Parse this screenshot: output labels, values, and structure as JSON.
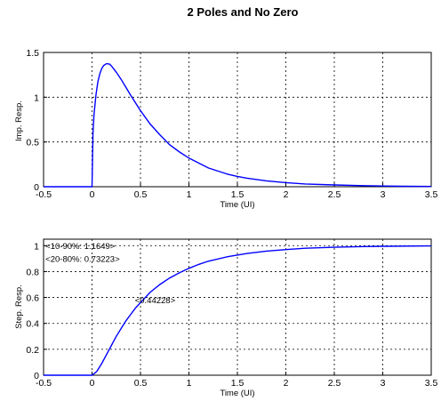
{
  "title": "2 Poles and No Zero",
  "chart_data": [
    {
      "type": "line",
      "title": "",
      "xlabel": "Time (UI)",
      "ylabel": "Imp. Resp.",
      "xlim": [
        -0.5,
        3.5
      ],
      "ylim": [
        0,
        1.5
      ],
      "xticks": [
        "-0.5",
        "0",
        "0.5",
        "1",
        "1.5",
        "2",
        "2.5",
        "3",
        "3.5"
      ],
      "yticks": [
        "0",
        "0.5",
        "1",
        "1.5"
      ],
      "grid": true,
      "series": [
        {
          "color": "#0000ff",
          "x": [
            -0.5,
            0,
            0.01,
            0.02,
            0.04,
            0.06,
            0.08,
            0.1,
            0.12,
            0.15,
            0.18,
            0.2,
            0.25,
            0.3,
            0.35,
            0.4,
            0.5,
            0.6,
            0.7,
            0.8,
            0.9,
            1.0,
            1.2,
            1.4,
            1.5,
            1.6,
            1.8,
            2.0,
            2.2,
            2.5,
            2.8,
            3.0,
            3.2,
            3.5
          ],
          "y": [
            0,
            0,
            0.6,
            0.8,
            1.02,
            1.17,
            1.26,
            1.32,
            1.355,
            1.375,
            1.37,
            1.35,
            1.28,
            1.2,
            1.11,
            1.02,
            0.85,
            0.7,
            0.58,
            0.47,
            0.39,
            0.32,
            0.21,
            0.14,
            0.115,
            0.095,
            0.065,
            0.045,
            0.03,
            0.02,
            0.012,
            0.008,
            0.005,
            0.003
          ]
        }
      ]
    },
    {
      "type": "line",
      "title": "",
      "xlabel": "Time (UI)",
      "ylabel": "Step. Resp.",
      "xlim": [
        -0.5,
        3.5
      ],
      "ylim": [
        0,
        1.05
      ],
      "xticks": [
        "-0.5",
        "0",
        "0.5",
        "1",
        "1.5",
        "2",
        "2.5",
        "3",
        "3.5"
      ],
      "yticks": [
        "0",
        "0.2",
        "0.4",
        "0.6",
        "0.8",
        "1"
      ],
      "grid": true,
      "series": [
        {
          "color": "#0000ff",
          "x": [
            -0.5,
            0,
            0.05,
            0.1,
            0.15,
            0.2,
            0.25,
            0.3,
            0.35,
            0.4,
            0.45,
            0.5,
            0.6,
            0.7,
            0.8,
            0.9,
            1.0,
            1.1,
            1.2,
            1.4,
            1.6,
            1.8,
            2.0,
            2.2,
            2.5,
            2.8,
            3.0,
            3.5
          ],
          "y": [
            0,
            0,
            0.03,
            0.09,
            0.16,
            0.23,
            0.3,
            0.36,
            0.42,
            0.47,
            0.52,
            0.56,
            0.64,
            0.7,
            0.75,
            0.79,
            0.825,
            0.855,
            0.88,
            0.915,
            0.94,
            0.958,
            0.97,
            0.98,
            0.988,
            0.993,
            0.995,
            0.998
          ]
        }
      ],
      "annotations": [
        {
          "text": "<10-90%: 1.1649>",
          "x": -0.48,
          "y": 1.0
        },
        {
          "text": "<20-80%: 0.73223>",
          "x": -0.48,
          "y": 0.9
        },
        {
          "text": "<0.44228>",
          "x": 0.44228,
          "y": 0.58
        }
      ]
    }
  ]
}
